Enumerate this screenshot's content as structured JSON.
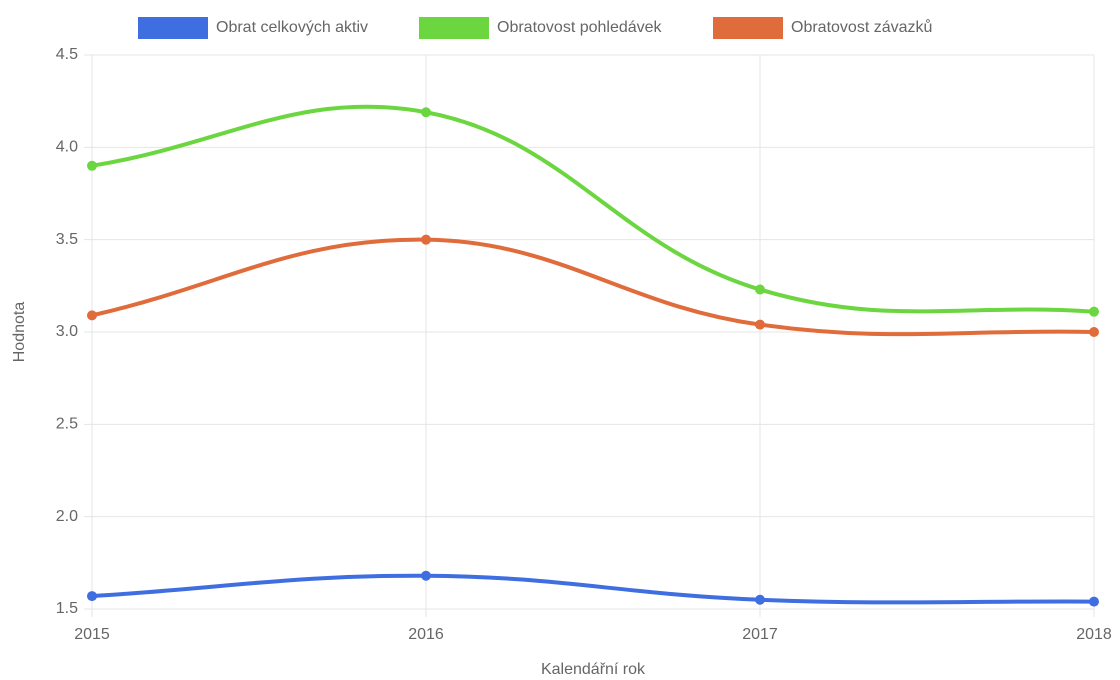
{
  "chart_data": {
    "type": "line",
    "x_label": "Kalendářní rok",
    "y_label": "Hodnota",
    "categories": [
      "2015",
      "2016",
      "2017",
      "2018"
    ],
    "series": [
      {
        "name": "Obrat celkových aktiv",
        "color": "#3e6ee0",
        "values": [
          1.57,
          1.68,
          1.55,
          1.54
        ]
      },
      {
        "name": "Obratovost pohledávek",
        "color": "#6bd63f",
        "values": [
          3.9,
          4.19,
          3.23,
          3.11
        ]
      },
      {
        "name": "Obratovost závazků",
        "color": "#e06b3b",
        "values": [
          3.09,
          3.5,
          3.04,
          3.0
        ]
      }
    ],
    "ylim": [
      1.5,
      4.5
    ],
    "yticks": [
      1.5,
      {
        "value": 2,
        "label": "2.0"
      },
      2.5,
      {
        "value": 3,
        "label": "3.0"
      },
      3.5,
      {
        "value": 4,
        "label": "4.0"
      },
      4.5
    ],
    "grid": true,
    "legend": "top"
  }
}
